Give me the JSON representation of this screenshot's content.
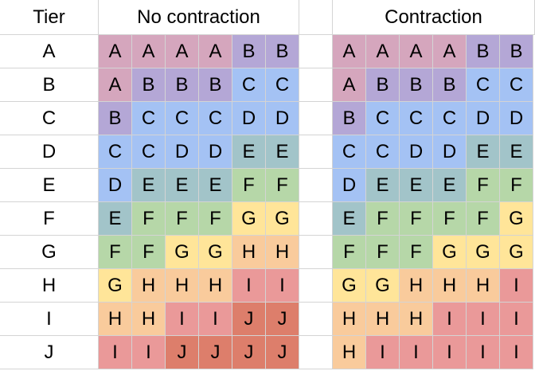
{
  "header": {
    "tier_label": "Tier",
    "no_contraction_title": "No contraction",
    "contraction_title": "Contraction"
  },
  "tiers": [
    "A",
    "B",
    "C",
    "D",
    "E",
    "F",
    "G",
    "H",
    "I",
    "J"
  ],
  "no_contraction": [
    [
      "A",
      "A",
      "A",
      "A",
      "B",
      "B"
    ],
    [
      "A",
      "B",
      "B",
      "B",
      "C",
      "C"
    ],
    [
      "B",
      "C",
      "C",
      "C",
      "D",
      "D"
    ],
    [
      "C",
      "C",
      "D",
      "D",
      "E",
      "E"
    ],
    [
      "D",
      "E",
      "E",
      "E",
      "F",
      "F"
    ],
    [
      "E",
      "F",
      "F",
      "F",
      "G",
      "G"
    ],
    [
      "F",
      "F",
      "G",
      "G",
      "H",
      "H"
    ],
    [
      "G",
      "H",
      "H",
      "H",
      "I",
      "I"
    ],
    [
      "H",
      "H",
      "I",
      "I",
      "J",
      "J"
    ],
    [
      "I",
      "I",
      "J",
      "J",
      "J",
      "J"
    ]
  ],
  "contraction": [
    [
      "A",
      "A",
      "A",
      "A",
      "B",
      "B"
    ],
    [
      "A",
      "B",
      "B",
      "B",
      "C",
      "C"
    ],
    [
      "B",
      "C",
      "C",
      "C",
      "D",
      "D"
    ],
    [
      "C",
      "C",
      "D",
      "D",
      "E",
      "E"
    ],
    [
      "D",
      "E",
      "E",
      "E",
      "F",
      "F"
    ],
    [
      "E",
      "F",
      "F",
      "F",
      "F",
      "G"
    ],
    [
      "F",
      "F",
      "F",
      "G",
      "G",
      "G"
    ],
    [
      "G",
      "G",
      "H",
      "H",
      "H",
      "I"
    ],
    [
      "H",
      "H",
      "H",
      "I",
      "I",
      "I"
    ],
    [
      "H",
      "I",
      "I",
      "I",
      "I",
      "I"
    ]
  ],
  "tier_colors": {
    "A": "#d5a6bd",
    "B": "#b4a7d6",
    "C": "#a4c2f4",
    "D": "#a4c2f4",
    "E": "#a2c4c9",
    "F": "#b6d7a8",
    "G": "#ffe599",
    "H": "#f9cb9c",
    "I": "#ea9999",
    "J": "#dd7e6b"
  }
}
